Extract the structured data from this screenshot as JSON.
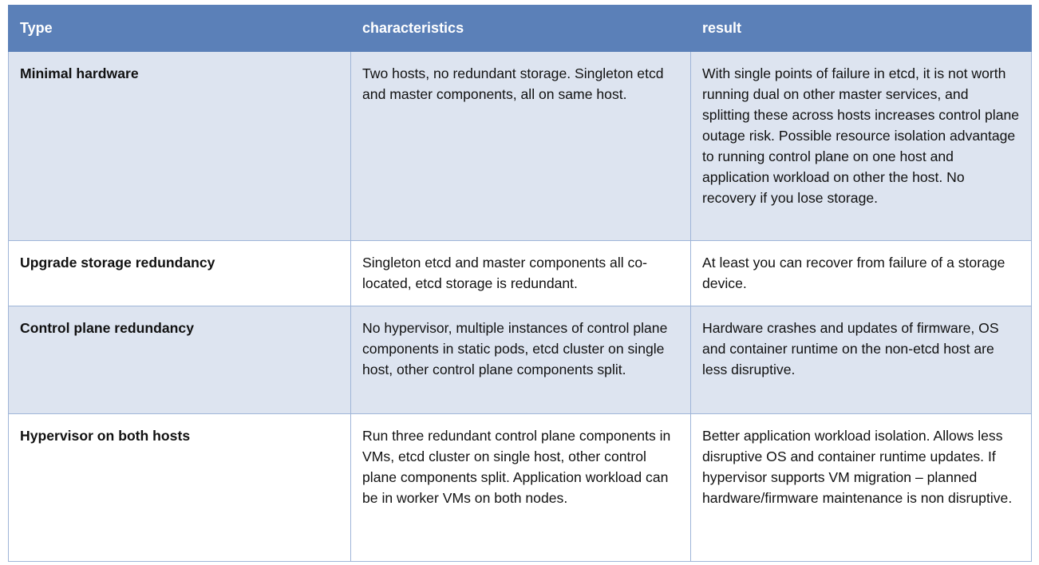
{
  "table": {
    "headers": [
      "Type",
      "characteristics",
      "result"
    ],
    "rows": [
      {
        "type": "Minimal hardware",
        "characteristics": "Two hosts, no redundant storage. Singleton etcd and master components, all on same host.",
        "result": "With single points of failure in etcd, it is not worth running dual on other master services, and splitting these across hosts increases control plane outage risk. Possible resource isolation advantage to running control plane on one host and application workload on other the host. No recovery if you lose storage."
      },
      {
        "type": "Upgrade storage redundancy",
        "characteristics": "Singleton etcd and master components all co-located, etcd storage is redundant.",
        "result": "At least you can recover from failure of a storage device."
      },
      {
        "type": "Control plane redundancy",
        "characteristics": "No hypervisor, multiple instances of control plane components in static pods, etcd cluster on single host, other control plane components split.",
        "result": "Hardware crashes and updates of firmware, OS and container runtime on the non-etcd host are less disruptive."
      },
      {
        "type": "Hypervisor on both hosts",
        "characteristics": "Run three redundant control plane components in VMs, etcd cluster on single host, other control plane components split. Application workload can be in worker VMs on both nodes.",
        "result": "Better application workload isolation. Allows less disruptive OS and container runtime updates. If hypervisor supports VM migration – planned hardware/firmware maintenance is non disruptive."
      }
    ]
  },
  "colors": {
    "header_bg": "#5b80b8",
    "alt_row_bg": "#dde4f0",
    "border": "#9fb5d8"
  }
}
